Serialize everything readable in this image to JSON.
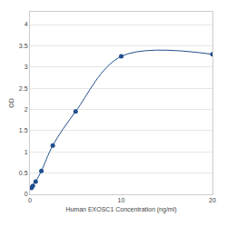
{
  "chart_data": {
    "type": "line",
    "x": [
      0.156,
      0.312,
      0.625,
      1.25,
      2.5,
      5,
      10,
      20
    ],
    "values": [
      0.15,
      0.2,
      0.3,
      0.55,
      1.15,
      1.95,
      3.25,
      3.3
    ],
    "color": "#1f4e8c",
    "marker": "circle",
    "line_style": "spline",
    "xlabel": "Human EXOSC1 Concentration (ng/ml)",
    "ylabel": "OD",
    "xlim": [
      0,
      20
    ],
    "xticks": [
      0,
      10,
      20
    ],
    "ylim": [
      0,
      4.3
    ],
    "yticks": [
      0,
      0.5,
      1,
      1.5,
      2,
      2.5,
      3,
      3.5,
      4
    ],
    "grid": true
  }
}
